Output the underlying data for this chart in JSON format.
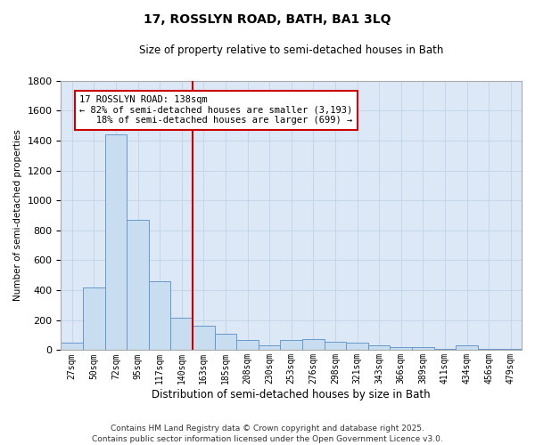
{
  "title": "17, ROSSLYN ROAD, BATH, BA1 3LQ",
  "subtitle": "Size of property relative to semi-detached houses in Bath",
  "xlabel": "Distribution of semi-detached houses by size in Bath",
  "ylabel": "Number of semi-detached properties",
  "property_label": "17 ROSSLYN ROAD: 138sqm",
  "pct_smaller": 82,
  "count_smaller": 3193,
  "pct_larger": 18,
  "count_larger": 699,
  "bin_labels": [
    "27sqm",
    "50sqm",
    "72sqm",
    "95sqm",
    "117sqm",
    "140sqm",
    "163sqm",
    "185sqm",
    "208sqm",
    "230sqm",
    "253sqm",
    "276sqm",
    "298sqm",
    "321sqm",
    "343sqm",
    "366sqm",
    "389sqm",
    "411sqm",
    "434sqm",
    "456sqm",
    "479sqm"
  ],
  "bin_values": [
    50,
    420,
    1440,
    870,
    460,
    215,
    160,
    110,
    65,
    35,
    70,
    75,
    55,
    50,
    30,
    20,
    20,
    10,
    35,
    10,
    10
  ],
  "bar_color": "#c8ddf0",
  "bar_edge_color": "#6699cc",
  "vline_color": "#cc0000",
  "vline_position": 5.5,
  "annotation_box_color": "#cc0000",
  "grid_color": "#c0d4e8",
  "bg_color": "#dce8f5",
  "fig_bg_color": "#ffffff",
  "ylim": [
    0,
    1800
  ],
  "yticks": [
    0,
    200,
    400,
    600,
    800,
    1000,
    1200,
    1400,
    1600,
    1800
  ],
  "footnote": "Contains HM Land Registry data © Crown copyright and database right 2025.\nContains public sector information licensed under the Open Government Licence v3.0."
}
